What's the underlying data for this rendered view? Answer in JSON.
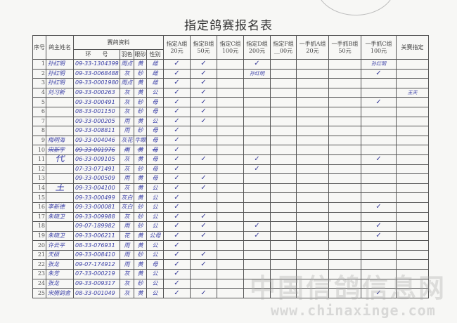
{
  "title": "指定鸽赛报名表",
  "headers": {
    "index": "序号",
    "owner": "鸽主姓名",
    "pigeon_info": "赛鸽资料",
    "ring": "环　　号",
    "color": "羽色",
    "eye": "眼砂",
    "sex": "性别",
    "groups": [
      {
        "key": "A",
        "line1": "指定A组",
        "line2": "20元"
      },
      {
        "key": "B",
        "line1": "指定B组",
        "line2": "50元"
      },
      {
        "key": "C",
        "line1": "指定C组",
        "line2": "100元"
      },
      {
        "key": "D",
        "line1": "指定D组",
        "line2": "200元"
      },
      {
        "key": "F",
        "line1": "指定F组",
        "line2": "__00元"
      },
      {
        "key": "YA",
        "line1": "一手抓A组",
        "line2": "20元"
      },
      {
        "key": "YB",
        "line1": "一手抓B组",
        "line2": "50元"
      },
      {
        "key": "YC",
        "line1": "一手抓C组",
        "line2": "100元"
      }
    ],
    "final": "关赛指定"
  },
  "check_mark": "✓",
  "rows": [
    {
      "no": "1",
      "owner": "孙红明",
      "ring": "09-33-1304399",
      "color": "雨点",
      "eye": "黄",
      "sex": "雌",
      "checks": [
        "A",
        "B",
        "D"
      ],
      "notes": {
        "YC": "孙红明"
      }
    },
    {
      "no": "2",
      "owner": "孙红明",
      "ring": "09-33-0068488",
      "color": "灰",
      "eye": "砂",
      "sex": "雌",
      "checks": [
        "A",
        "B",
        "YC"
      ],
      "notes": {
        "D": "孙红明"
      }
    },
    {
      "no": "3",
      "owner": "孙红明",
      "ring": "09-33-0001980",
      "color": "雨点",
      "eye": "黄",
      "sex": "雌",
      "checks": [
        "A",
        "B"
      ],
      "notes": {}
    },
    {
      "no": "4",
      "owner": "刘习新",
      "ring": "09-33-000263",
      "color": "灰",
      "eye": "黄",
      "sex": "公",
      "checks": [
        "A",
        "B"
      ],
      "notes": {
        "final": "王天"
      }
    },
    {
      "no": "5",
      "owner": "",
      "ring": "09-33-000491",
      "color": "灰",
      "eye": "砂",
      "sex": "母",
      "checks": [
        "A",
        "B",
        "YC"
      ],
      "notes": {}
    },
    {
      "no": "6",
      "owner": "",
      "ring": "08-33-001150",
      "color": "灰",
      "eye": "砂",
      "sex": "母",
      "checks": [
        "A",
        "B"
      ],
      "notes": {}
    },
    {
      "no": "7",
      "owner": "",
      "ring": "09-33-000205",
      "color": "雨",
      "eye": "黄",
      "sex": "公",
      "checks": [
        "A",
        "B"
      ],
      "notes": {}
    },
    {
      "no": "8",
      "owner": "",
      "ring": "09-33-008811",
      "color": "雨",
      "eye": "砂",
      "sex": "母",
      "checks": [
        "A"
      ],
      "notes": {}
    },
    {
      "no": "9",
      "owner": "梅明海",
      "ring": "09-33-004046",
      "color": "灰花",
      "eye": "牛眼",
      "sex": "母",
      "checks": [
        "A"
      ],
      "notes": {}
    },
    {
      "no": "10",
      "owner": "宋新宇",
      "ring": "09-33-001976",
      "color": "雨",
      "eye": "黄",
      "sex": "母",
      "checks": [
        "A"
      ],
      "notes": {},
      "struck": true
    },
    {
      "no": "11",
      "owner": "代",
      "ring": "06-33-009105",
      "color": "灰",
      "eye": "黄",
      "sex": "母",
      "checks": [
        "A",
        "B",
        "D",
        "YC"
      ],
      "notes": {}
    },
    {
      "no": "12",
      "owner": "",
      "ring": "07-33-071491",
      "color": "灰",
      "eye": "砂",
      "sex": "母",
      "checks": [
        "A",
        "D"
      ],
      "notes": {}
    },
    {
      "no": "13",
      "owner": "",
      "ring": "09-33-000509",
      "color": "雨",
      "eye": "黄",
      "sex": "母",
      "checks": [
        "A",
        "B"
      ],
      "notes": {}
    },
    {
      "no": "14",
      "owner": "王",
      "ring": "09-33-004100",
      "color": "灰",
      "eye": "黄",
      "sex": "公",
      "checks": [
        "A",
        "B"
      ],
      "notes": {}
    },
    {
      "no": "15",
      "owner": "",
      "ring": "09-33-000499",
      "color": "灰白",
      "eye": "黄",
      "sex": "公",
      "checks": [
        "A"
      ],
      "notes": {}
    },
    {
      "no": "16",
      "owner": "李新德",
      "ring": "09-33-000081",
      "color": "灰白",
      "eye": "砂",
      "sex": "公",
      "checks": [
        "A",
        "YC"
      ],
      "notes": {}
    },
    {
      "no": "17",
      "owner": "朱晓卫",
      "ring": "09-33-009988",
      "color": "灰",
      "eye": "砂",
      "sex": "公",
      "checks": [
        "A",
        "B"
      ],
      "notes": {}
    },
    {
      "no": "18",
      "owner": "",
      "ring": "09-07-189982",
      "color": "雨",
      "eye": "砂",
      "sex": "公",
      "checks": [
        "A",
        "B",
        "D",
        "YC"
      ],
      "notes": {}
    },
    {
      "no": "19",
      "owner": "朱晓卫",
      "ring": "09-33-006211",
      "color": "花",
      "eye": "黄",
      "sex": "公母",
      "checks": [
        "A",
        "B",
        "D",
        "YC"
      ],
      "notes": {}
    },
    {
      "no": "20",
      "owner": "许云平",
      "ring": "08-33-076931",
      "color": "雨",
      "eye": "黄",
      "sex": "公",
      "checks": [
        "A"
      ],
      "notes": {}
    },
    {
      "no": "21",
      "owner": "天硕",
      "ring": "09-33-008410",
      "color": "雨",
      "eye": "砂",
      "sex": "公",
      "checks": [
        "A",
        "B"
      ],
      "notes": {}
    },
    {
      "no": "22",
      "owner": "张龙",
      "ring": "09-07-174912",
      "color": "雨",
      "eye": "黄",
      "sex": "母",
      "checks": [
        "A",
        "B"
      ],
      "notes": {}
    },
    {
      "no": "23",
      "owner": "朱芳",
      "ring": "07-33-000219",
      "color": "灰",
      "eye": "黄",
      "sex": "公",
      "checks": [
        "A"
      ],
      "notes": {}
    },
    {
      "no": "24",
      "owner": "张龙",
      "ring": "09-33-009317",
      "color": "灰",
      "eye": "砂",
      "sex": "公",
      "checks": [
        "A"
      ],
      "notes": {}
    },
    {
      "no": "25",
      "owner": "宋腾鸽舍",
      "ring": "08-33-001049",
      "color": "灰",
      "eye": "黄",
      "sex": "公",
      "checks": [
        "A",
        "B",
        "YC"
      ],
      "notes": {}
    }
  ],
  "watermark": {
    "name": "中国信鸽信息网",
    "url": "www.chinaxinge.com"
  }
}
